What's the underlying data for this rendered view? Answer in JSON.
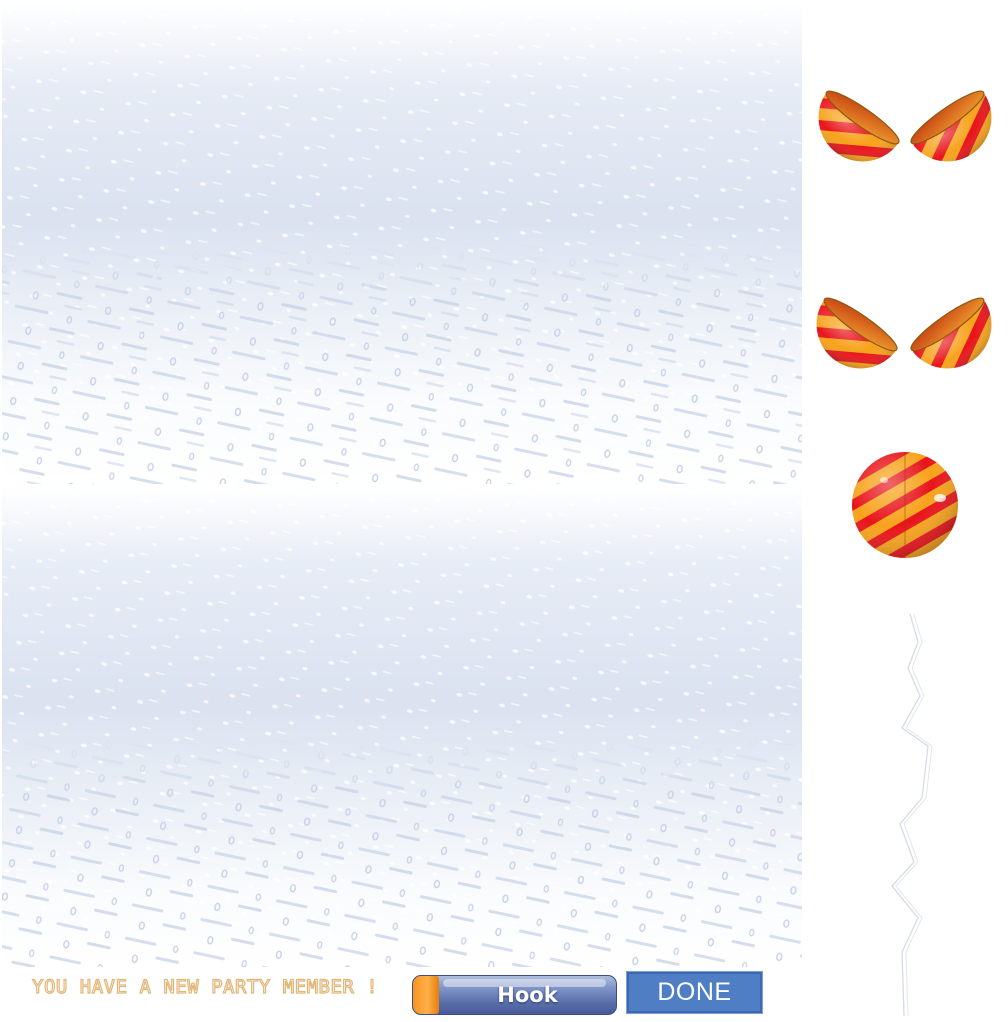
{
  "message": {
    "text": "YOU HAVE A NEW PARTY MEMBER !"
  },
  "buttons": {
    "hook_label": "Hook",
    "done_label": "DONE"
  },
  "sprites": {
    "capsule_icons": [
      "open-capsule-icon",
      "open-capsule-icon",
      "closed-capsule-icon"
    ],
    "crack_icon": "crack-line-icon"
  },
  "colors": {
    "capsule_red": "#e8141a",
    "capsule_orange": "#f7a21b",
    "snow_tint": "#dde4f1",
    "message_outline": "#e2b678",
    "hook_body": "#6479b4",
    "hook_cap": "#f7941d",
    "done_button": "#4f7ec4"
  }
}
